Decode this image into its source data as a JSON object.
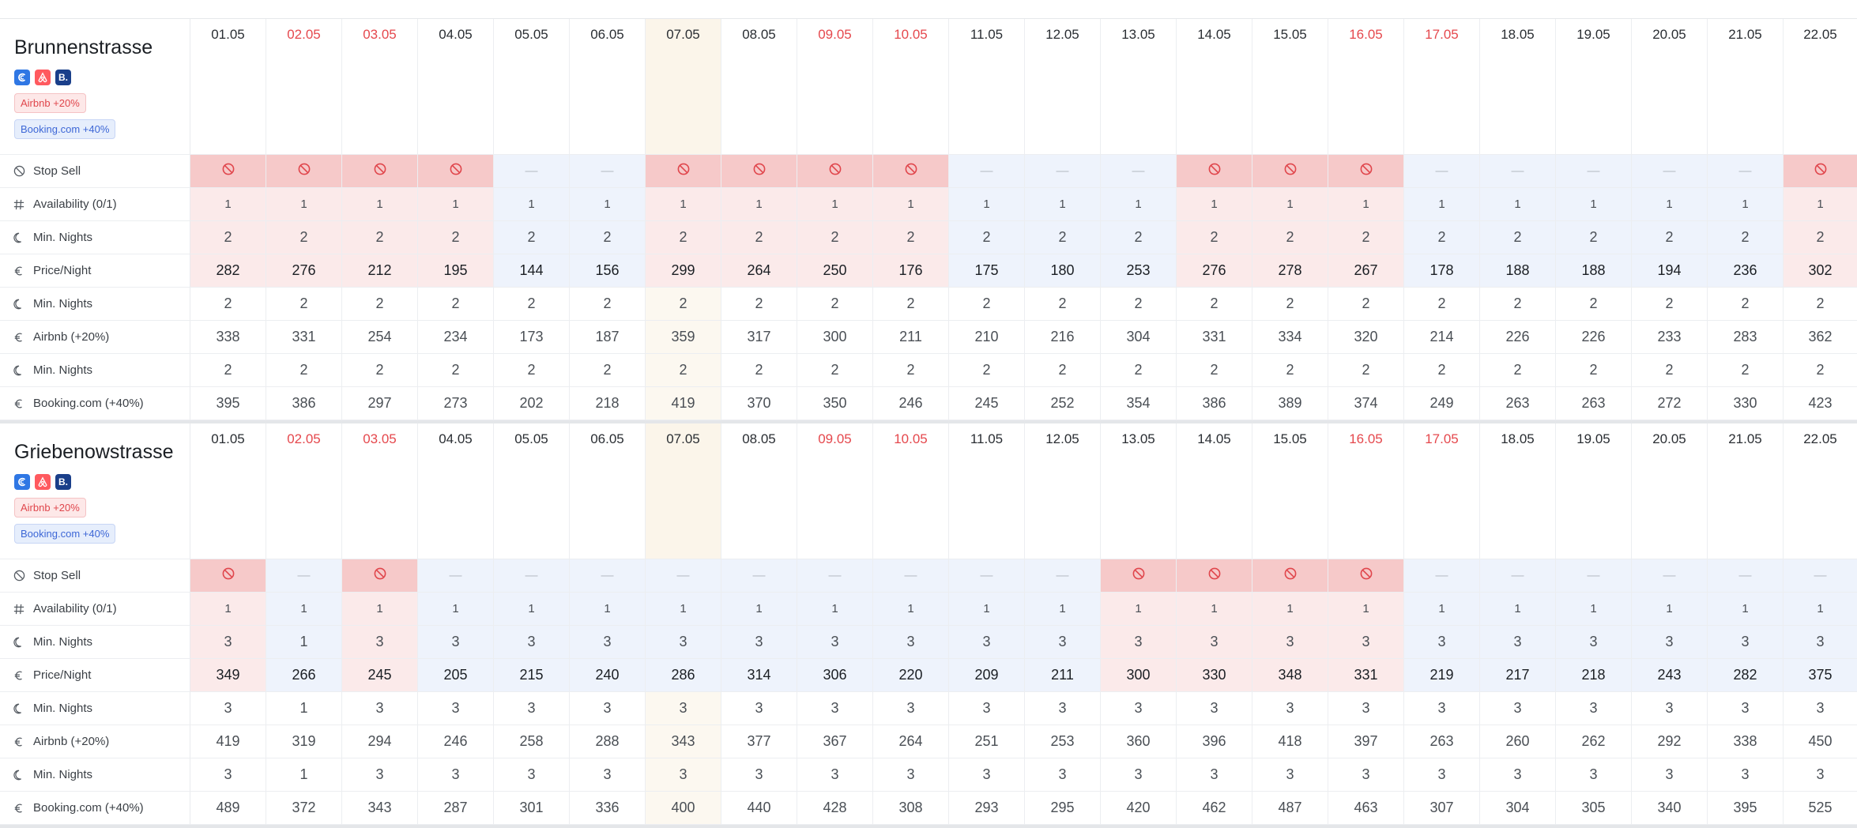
{
  "dates": [
    "01.05",
    "02.05",
    "03.05",
    "04.05",
    "05.05",
    "06.05",
    "07.05",
    "08.05",
    "09.05",
    "10.05",
    "11.05",
    "12.05",
    "13.05",
    "14.05",
    "15.05",
    "16.05",
    "17.05",
    "18.05",
    "19.05",
    "20.05",
    "21.05",
    "22.05"
  ],
  "red_dates": [
    1,
    2,
    8,
    9,
    15,
    16
  ],
  "today_index": 6,
  "labels": {
    "stop_sell": "Stop Sell",
    "availability": "Availability (0/1)",
    "min_nights": "Min. Nights",
    "price_night": "Price/Night",
    "airbnb": "Airbnb (+20%)",
    "booking": "Booking.com (+40%)"
  },
  "stop_sell_off_symbol": "—",
  "colors": {
    "red_date": "#e5484d",
    "stop_sell_on": "#f6c9c9",
    "pink": "#fbeaea",
    "blue": "#eef3fc",
    "today": "#fbf5ea"
  },
  "properties": [
    {
      "name": "Brunnenstrasse",
      "channel_icons": [
        "channel-manager-icon",
        "airbnb-icon",
        "booking-icon"
      ],
      "booking_icon_letter": "B.",
      "airbnb_tag": "Airbnb +20%",
      "booking_tag": "Booking.com +40%",
      "stop_sell": [
        1,
        1,
        1,
        1,
        0,
        0,
        1,
        1,
        1,
        1,
        0,
        0,
        0,
        1,
        1,
        1,
        0,
        0,
        0,
        0,
        0,
        1
      ],
      "row_tone": [
        "p",
        "p",
        "p",
        "p",
        "b",
        "b",
        "p",
        "p",
        "p",
        "p",
        "b",
        "b",
        "b",
        "p",
        "p",
        "p",
        "b",
        "b",
        "b",
        "b",
        "b",
        "p"
      ],
      "availability": [
        "1",
        "1",
        "1",
        "1",
        "1",
        "1",
        "1",
        "1",
        "1",
        "1",
        "1",
        "1",
        "1",
        "1",
        "1",
        "1",
        "1",
        "1",
        "1",
        "1",
        "1",
        "1"
      ],
      "min_nights": [
        "2",
        "2",
        "2",
        "2",
        "2",
        "2",
        "2",
        "2",
        "2",
        "2",
        "2",
        "2",
        "2",
        "2",
        "2",
        "2",
        "2",
        "2",
        "2",
        "2",
        "2",
        "2"
      ],
      "price": [
        "282",
        "276",
        "212",
        "195",
        "144",
        "156",
        "299",
        "264",
        "250",
        "176",
        "175",
        "180",
        "253",
        "276",
        "278",
        "267",
        "178",
        "188",
        "188",
        "194",
        "236",
        "302"
      ],
      "airbnb_min_nights": [
        "2",
        "2",
        "2",
        "2",
        "2",
        "2",
        "2",
        "2",
        "2",
        "2",
        "2",
        "2",
        "2",
        "2",
        "2",
        "2",
        "2",
        "2",
        "2",
        "2",
        "2",
        "2"
      ],
      "airbnb_price": [
        "338",
        "331",
        "254",
        "234",
        "173",
        "187",
        "359",
        "317",
        "300",
        "211",
        "210",
        "216",
        "304",
        "331",
        "334",
        "320",
        "214",
        "226",
        "226",
        "233",
        "283",
        "362"
      ],
      "booking_min_nights": [
        "2",
        "2",
        "2",
        "2",
        "2",
        "2",
        "2",
        "2",
        "2",
        "2",
        "2",
        "2",
        "2",
        "2",
        "2",
        "2",
        "2",
        "2",
        "2",
        "2",
        "2",
        "2"
      ],
      "booking_price": [
        "395",
        "386",
        "297",
        "273",
        "202",
        "218",
        "419",
        "370",
        "350",
        "246",
        "245",
        "252",
        "354",
        "386",
        "389",
        "374",
        "249",
        "263",
        "263",
        "272",
        "330",
        "423"
      ]
    },
    {
      "name": "Griebenowstrasse",
      "channel_icons": [
        "channel-manager-icon",
        "airbnb-icon",
        "booking-icon"
      ],
      "booking_icon_letter": "B.",
      "airbnb_tag": "Airbnb +20%",
      "booking_tag": "Booking.com +40%",
      "stop_sell": [
        1,
        0,
        1,
        0,
        0,
        0,
        0,
        0,
        0,
        0,
        0,
        0,
        1,
        1,
        1,
        1,
        0,
        0,
        0,
        0,
        0,
        0
      ],
      "row_tone": [
        "p",
        "b",
        "p",
        "b",
        "b",
        "b",
        "b",
        "b",
        "b",
        "b",
        "b",
        "b",
        "p",
        "p",
        "p",
        "p",
        "b",
        "b",
        "b",
        "b",
        "b",
        "b"
      ],
      "availability": [
        "1",
        "1",
        "1",
        "1",
        "1",
        "1",
        "1",
        "1",
        "1",
        "1",
        "1",
        "1",
        "1",
        "1",
        "1",
        "1",
        "1",
        "1",
        "1",
        "1",
        "1",
        "1"
      ],
      "min_nights": [
        "3",
        "1",
        "3",
        "3",
        "3",
        "3",
        "3",
        "3",
        "3",
        "3",
        "3",
        "3",
        "3",
        "3",
        "3",
        "3",
        "3",
        "3",
        "3",
        "3",
        "3",
        "3"
      ],
      "price": [
        "349",
        "266",
        "245",
        "205",
        "215",
        "240",
        "286",
        "314",
        "306",
        "220",
        "209",
        "211",
        "300",
        "330",
        "348",
        "331",
        "219",
        "217",
        "218",
        "243",
        "282",
        "375"
      ],
      "airbnb_min_nights": [
        "3",
        "1",
        "3",
        "3",
        "3",
        "3",
        "3",
        "3",
        "3",
        "3",
        "3",
        "3",
        "3",
        "3",
        "3",
        "3",
        "3",
        "3",
        "3",
        "3",
        "3",
        "3"
      ],
      "airbnb_price": [
        "419",
        "319",
        "294",
        "246",
        "258",
        "288",
        "343",
        "377",
        "367",
        "264",
        "251",
        "253",
        "360",
        "396",
        "418",
        "397",
        "263",
        "260",
        "262",
        "292",
        "338",
        "450"
      ],
      "booking_min_nights": [
        "3",
        "1",
        "3",
        "3",
        "3",
        "3",
        "3",
        "3",
        "3",
        "3",
        "3",
        "3",
        "3",
        "3",
        "3",
        "3",
        "3",
        "3",
        "3",
        "3",
        "3",
        "3"
      ],
      "booking_price": [
        "489",
        "372",
        "343",
        "287",
        "301",
        "336",
        "400",
        "440",
        "428",
        "308",
        "293",
        "295",
        "420",
        "462",
        "487",
        "463",
        "307",
        "304",
        "305",
        "340",
        "395",
        "525"
      ]
    }
  ]
}
